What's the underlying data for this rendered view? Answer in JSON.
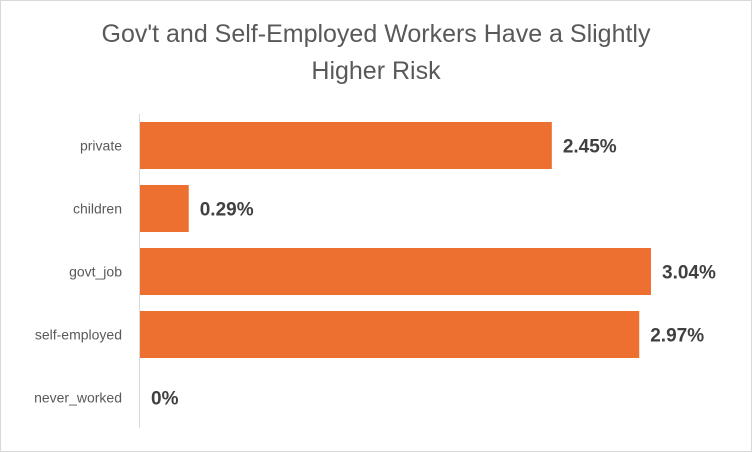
{
  "chart_data": {
    "type": "bar",
    "orientation": "horizontal",
    "title_lines": [
      "Gov't and Self-Employed Workers Have a Slightly",
      "Higher Risk"
    ],
    "categories": [
      "private",
      "children",
      "govt_job",
      "self-employed",
      "never_worked"
    ],
    "values": [
      2.45,
      0.29,
      3.04,
      2.97,
      0.0
    ],
    "value_labels": [
      "2.45%",
      "0.29%",
      "3.04%",
      "2.97%",
      "0%"
    ],
    "xlabel": "",
    "ylabel": "",
    "xlim": [
      0,
      3.04
    ],
    "grid": false,
    "legend": "none",
    "colors": {
      "bar": "#ED7030",
      "axis": "#D9D9D9"
    }
  }
}
